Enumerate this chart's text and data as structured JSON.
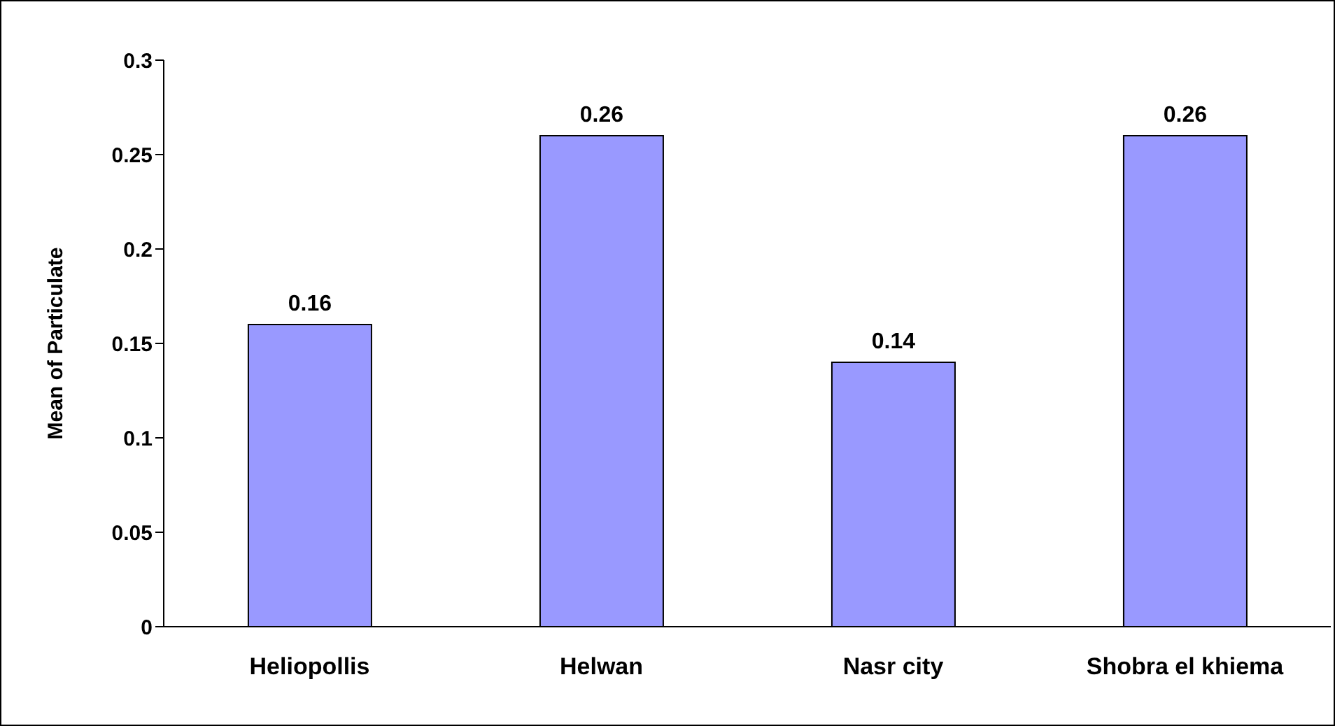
{
  "chart_data": {
    "type": "bar",
    "ylabel": "Mean of Particulate",
    "categories": [
      "Heliopollis",
      "Helwan",
      "Nasr city",
      "Shobra el khiema"
    ],
    "values": [
      0.16,
      0.26,
      0.14,
      0.26
    ],
    "color": "#9999ff",
    "ylim": [
      0,
      0.3
    ],
    "yticks": [
      0,
      0.05,
      0.1,
      0.15,
      0.2,
      0.25,
      0.3
    ],
    "data_labels": true
  }
}
